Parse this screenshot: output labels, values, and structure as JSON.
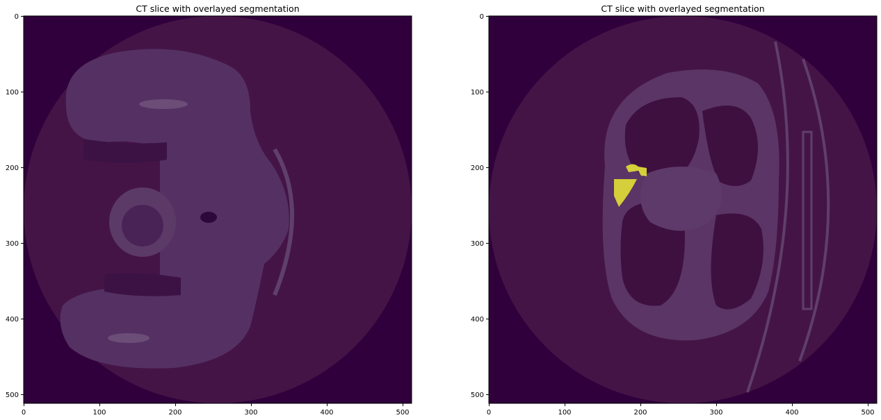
{
  "panels": [
    {
      "title": "CT slice with overlayed segmentation",
      "x_ticks": [
        "0",
        "100",
        "200",
        "300",
        "400",
        "500"
      ],
      "y_ticks": [
        "0",
        "100",
        "200",
        "300",
        "400",
        "500"
      ],
      "x_range": [
        0,
        512
      ],
      "y_range": [
        0,
        512
      ],
      "segmentation_visible": false,
      "content": "sagittal CT slice"
    },
    {
      "title": "CT slice with overlayed segmentation",
      "x_ticks": [
        "0",
        "100",
        "200",
        "300",
        "400",
        "500"
      ],
      "y_ticks": [
        "0",
        "100",
        "200",
        "300",
        "400",
        "500"
      ],
      "x_range": [
        0,
        512
      ],
      "y_range": [
        0,
        512
      ],
      "segmentation_visible": true,
      "content": "axial chest CT slice"
    }
  ],
  "colors": {
    "background_dark": "#30003c",
    "scan_field": "#451447",
    "tissue": "#5c3766",
    "segmentation": "#d4cf3a",
    "lung": "#3e1040"
  }
}
